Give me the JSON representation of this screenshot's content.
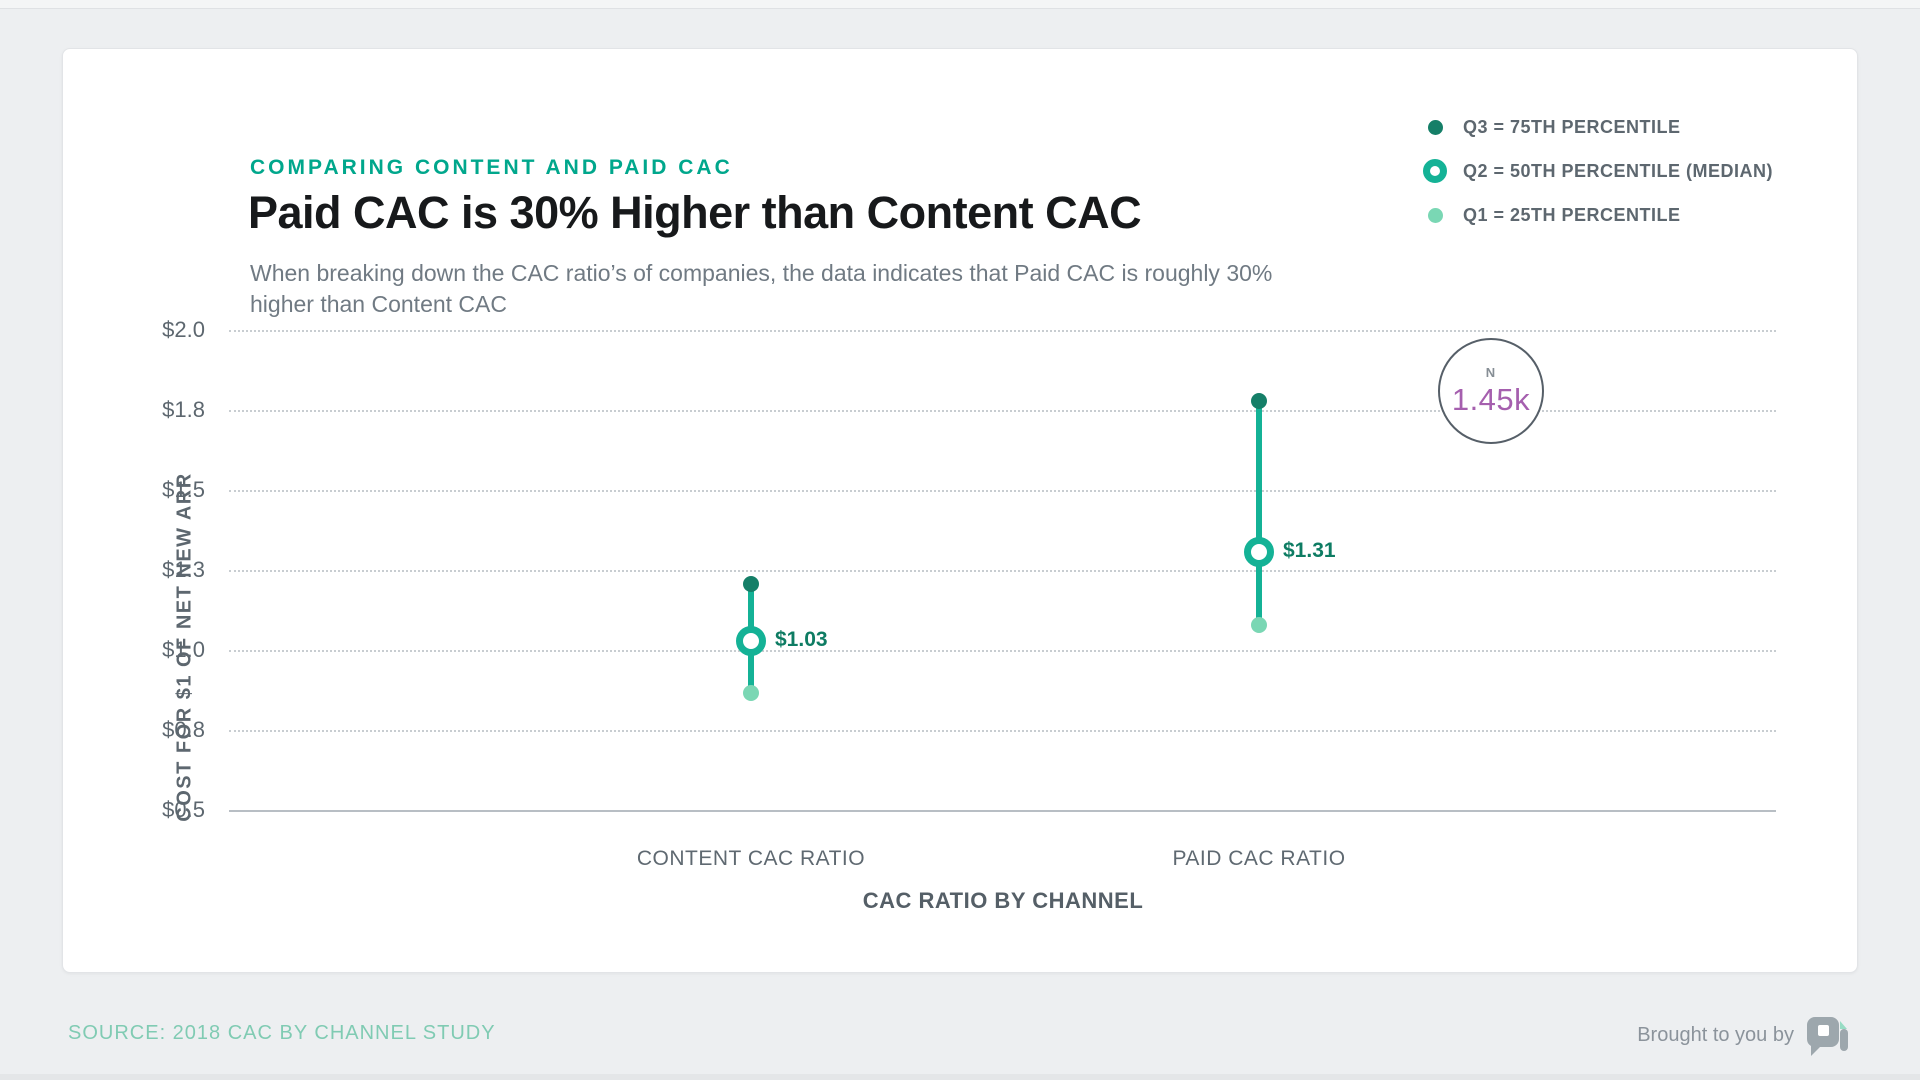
{
  "page": {
    "eyebrow": "COMPARING CONTENT AND PAID CAC",
    "title": "Paid CAC is 30% Higher than Content CAC",
    "subtitle_lines": [
      "When breaking down the CAC ratio’s of companies, the data indicates that Paid CAC is roughly 30%",
      "higher than Content CAC"
    ]
  },
  "legend": {
    "items": [
      {
        "label": "Q3 = 75TH PERCENTILE",
        "swatch": "dot",
        "color": "#157f68"
      },
      {
        "label": "Q2 = 50TH PERCENTILE (MEDIAN)",
        "swatch": "ring",
        "color": "#14b296"
      },
      {
        "label": "Q1 = 25TH PERCENTILE",
        "swatch": "dot",
        "color": "#7ad7b4"
      }
    ]
  },
  "chart_data": {
    "type": "quartile-range",
    "categories": [
      "CONTENT CAC RATIO",
      "PAID CAC RATIO"
    ],
    "series": [
      {
        "name": "Q3 = 75TH PERCENTILE",
        "values": [
          1.21,
          1.78
        ]
      },
      {
        "name": "Q2 = 50TH PERCENTILE (MEDIAN)",
        "values": [
          1.03,
          1.31
        ]
      },
      {
        "name": "Q1 = 25TH PERCENTILE",
        "values": [
          0.87,
          1.08
        ]
      }
    ],
    "median_labels": [
      "$1.03",
      "$1.31"
    ],
    "title": "Paid CAC is 30% Higher than Content CAC",
    "xlabel": "CAC RATIO BY CHANNEL",
    "ylabel": "COST FOR $1 OF NET NEW ARR",
    "ylim": [
      0.5,
      2.0
    ],
    "yticks": {
      "values": [
        2.0,
        1.75,
        1.5,
        1.25,
        1.0,
        0.75,
        0.5
      ],
      "labels": [
        "$2.0",
        "$1.8",
        "$1.5",
        "$1.3",
        "$1.0",
        "$0.8",
        "$0.5"
      ]
    },
    "grid": "dotted horizontal",
    "legend_position": "top-right",
    "annotation": {
      "label": "N",
      "value": "1.45k"
    }
  },
  "colors": {
    "accent_teal": "#00a78c",
    "q3": "#157f68",
    "q2": "#14b296",
    "q1": "#7ad7b4",
    "badge_value": "#a55fae",
    "source_text": "#80cbb3"
  },
  "footer": {
    "source": "SOURCE: 2018 CAC BY CHANNEL STUDY",
    "attribution": "Brought to you by",
    "logo": "profitwell-logo"
  }
}
